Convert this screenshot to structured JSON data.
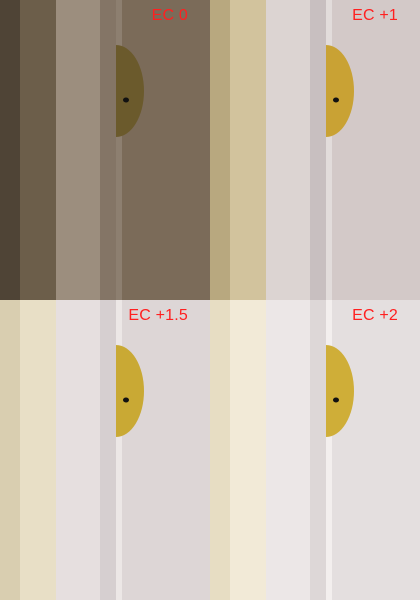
{
  "panels": [
    {
      "exposure_label": "EC 0",
      "colors": {
        "wall_far": "#4f4436",
        "wall_mid": "#6c5e4a",
        "trim": "#9c8e7e",
        "trim_shadow": "#847566",
        "door": "#7b6b59",
        "door_edge": "#8d7f70",
        "object": "#6b5a2c"
      }
    },
    {
      "exposure_label": "EC +1",
      "colors": {
        "wall_far": "#b8a87f",
        "wall_mid": "#d2c39d",
        "trim": "#dcd4d2",
        "trim_shadow": "#c8bfc0",
        "door": "#d3c9c8",
        "door_edge": "#e2dcdb",
        "object": "#c9a234"
      }
    },
    {
      "exposure_label": "EC +1.5",
      "colors": {
        "wall_far": "#d9ceb0",
        "wall_mid": "#e8dfc6",
        "trim": "#e6dfdf",
        "trim_shadow": "#d6cfd0",
        "door": "#ddd6d6",
        "door_edge": "#ece7e6",
        "object": "#c9a934"
      }
    },
    {
      "exposure_label": "EC +2",
      "colors": {
        "wall_far": "#e7ddc3",
        "wall_mid": "#f2ead7",
        "trim": "#ece7e7",
        "trim_shadow": "#ddd7d7",
        "door": "#e4dfdf",
        "door_edge": "#f3efee",
        "object": "#cfae38"
      }
    }
  ]
}
